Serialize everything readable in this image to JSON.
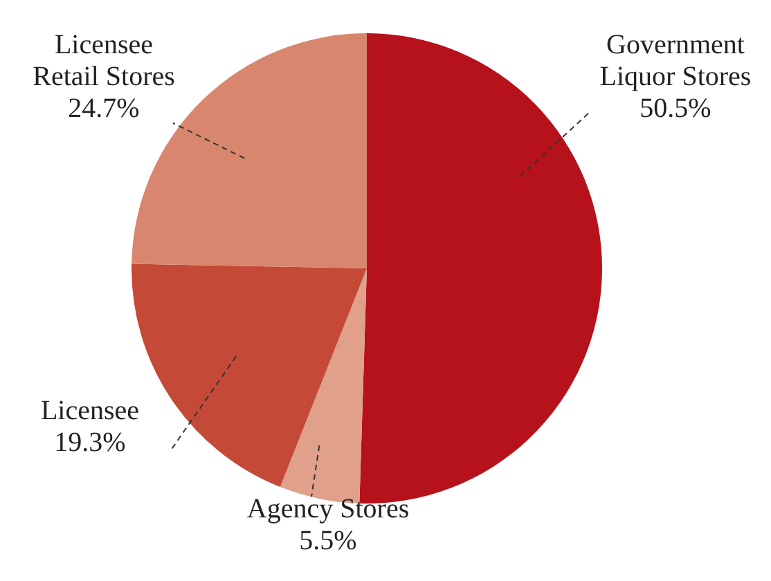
{
  "chart_data": {
    "type": "pie",
    "categories": [
      "Government\nLiquor Stores",
      "Agency Stores",
      "Licensee",
      "Licensee\nRetail Stores"
    ],
    "values": [
      50.5,
      5.5,
      19.3,
      24.7
    ],
    "colors": [
      "#b5121b",
      "#e0a08a",
      "#c44a37",
      "#d9866e"
    ],
    "value_labels": [
      "50.5%",
      "5.5%",
      "19.3%",
      "24.7%"
    ],
    "legend": false
  }
}
